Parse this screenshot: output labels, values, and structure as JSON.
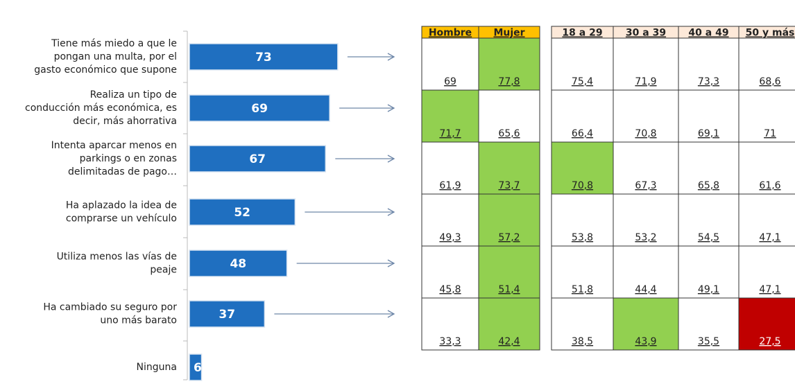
{
  "chart_data": {
    "type": "bar",
    "orientation": "horizontal",
    "categories": [
      "Tiene más miedo a que le pongan una multa, por el gasto económico que supone",
      "Realiza un tipo de conducción más económica, es decir, más ahorrativa",
      "Intenta aparcar menos en parkings o en zonas delimitadas de pago…",
      "Ha aplazado la idea de comprarse un vehículo",
      "Utiliza menos las vías de peaje",
      "Ha cambiado su seguro por uno más barato",
      "Ninguna"
    ],
    "values": [
      73,
      69,
      67,
      52,
      48,
      37,
      6
    ],
    "color": "#1f6fc0",
    "xlim": [
      0,
      100
    ]
  },
  "gender_table": {
    "header_color": "#ffc000",
    "headers": [
      "Hombre",
      "Mujer"
    ],
    "rows": [
      [
        "69",
        "77,8"
      ],
      [
        "71,7",
        "65,6"
      ],
      [
        "61,9",
        "73,7"
      ],
      [
        "49,3",
        "57,2"
      ],
      [
        "45,8",
        "51,4"
      ],
      [
        "33,3",
        "42,4"
      ]
    ],
    "cell_colors": [
      [
        null,
        "#92d050"
      ],
      [
        "#92d050",
        null
      ],
      [
        null,
        "#92d050"
      ],
      [
        null,
        "#92d050"
      ],
      [
        null,
        "#92d050"
      ],
      [
        null,
        "#92d050"
      ]
    ]
  },
  "age_table": {
    "header_color": "#fde9d9",
    "headers": [
      "18 a 29",
      "30 a 39",
      "40 a 49",
      "50 y más"
    ],
    "rows": [
      [
        "75,4",
        "71,9",
        "73,3",
        "68,6"
      ],
      [
        "66,4",
        "70,8",
        "69,1",
        "71"
      ],
      [
        "70,8",
        "67,3",
        "65,8",
        "61,6"
      ],
      [
        "53,8",
        "53,2",
        "54,5",
        "47,1"
      ],
      [
        "51,8",
        "44,4",
        "49,1",
        "47,1"
      ],
      [
        "38,5",
        "43,9",
        "35,5",
        "27,5"
      ]
    ],
    "cell_colors": [
      [
        null,
        null,
        null,
        null
      ],
      [
        null,
        null,
        null,
        null
      ],
      [
        "#92d050",
        null,
        null,
        null
      ],
      [
        null,
        null,
        null,
        null
      ],
      [
        null,
        null,
        null,
        null
      ],
      [
        null,
        "#92d050",
        null,
        "#c00000"
      ]
    ]
  }
}
